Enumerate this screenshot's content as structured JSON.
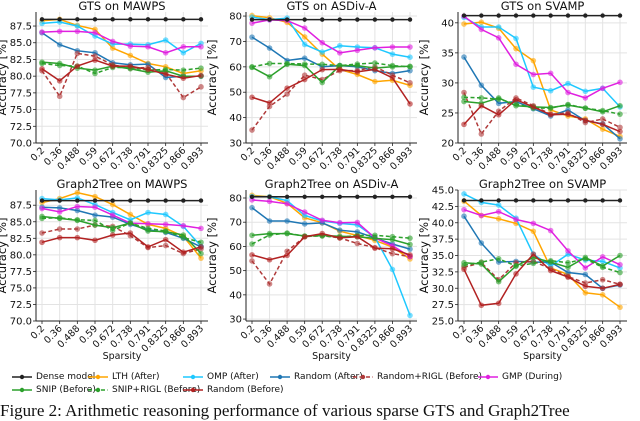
{
  "legend": [
    {
      "name": "Dense model",
      "color": "#222222",
      "dashed": false
    },
    {
      "name": "LTH (After)",
      "color": "#ffa500",
      "dashed": false
    },
    {
      "name": "OMP (After)",
      "color": "#1ec8ff",
      "dashed": false
    },
    {
      "name": "Random (After)",
      "color": "#1f77b4",
      "dashed": false
    },
    {
      "name": "Random+RIGL (Before)",
      "color": "#b03a3a",
      "dashed": true
    },
    {
      "name": "GMP (During)",
      "color": "#e020e0",
      "dashed": false
    },
    {
      "name": "SNIP (Before)",
      "color": "#2ca02c",
      "dashed": false
    },
    {
      "name": "SNIP+RIGL (Before)",
      "color": "#2ca02c",
      "dashed": true
    },
    {
      "name": "Random (Before)",
      "color": "#b22222",
      "dashed": false
    }
  ],
  "caption": "Figure 2: Arithmetic reasoning performance of various sparse GTS and Graph2Tree",
  "chart_data": [
    {
      "type": "line",
      "title": "GTS on MAWPS",
      "xlabel": "",
      "ylabel": "Accuracy [%]",
      "ylim": [
        70,
        89.6
      ],
      "yticks": [
        "70.0",
        "72.5",
        "75.0",
        "77.5",
        "80.0",
        "82.5",
        "85.0",
        "87.5"
      ],
      "categories": [
        "0.2",
        "0.36",
        "0.488",
        "0.59",
        "0.672",
        "0.738",
        "0.791",
        "0.8325",
        "0.866",
        "0.893"
      ],
      "series": [
        {
          "name": "Dense model",
          "values": [
            88.5,
            88.5,
            88.5,
            88.5,
            88.5,
            88.5,
            88.5,
            88.5,
            88.5,
            88.5
          ]
        },
        {
          "name": "LTH (After)",
          "values": [
            88.3,
            88.5,
            87.6,
            87.0,
            84.2,
            83.1,
            81.9,
            81.4,
            80.4,
            80.8
          ]
        },
        {
          "name": "OMP (After)",
          "values": [
            87.9,
            88.1,
            87.5,
            86.0,
            84.8,
            84.8,
            84.7,
            85.4,
            83.5,
            84.9
          ]
        },
        {
          "name": "Random (After)",
          "values": [
            86.5,
            84.7,
            83.8,
            83.5,
            82.0,
            81.7,
            81.8,
            79.8,
            80.0,
            80.0
          ]
        },
        {
          "name": "Random+RIGL (Before)",
          "values": [
            80.8,
            77.0,
            83.4,
            83.0,
            81.7,
            81.2,
            81.3,
            80.5,
            76.8,
            78.4
          ]
        },
        {
          "name": "GMP (During)",
          "values": [
            86.6,
            86.7,
            86.7,
            86.5,
            85.2,
            84.5,
            84.4,
            83.5,
            84.4,
            84.4
          ]
        },
        {
          "name": "SNIP (Before)",
          "values": [
            82.1,
            81.9,
            81.2,
            80.9,
            81.5,
            81.1,
            80.6,
            80.8,
            80.0,
            80.0
          ]
        },
        {
          "name": "SNIP+RIGL (Before)",
          "values": [
            81.9,
            81.6,
            81.5,
            80.4,
            81.3,
            81.3,
            80.9,
            81.0,
            80.9,
            81.2
          ]
        },
        {
          "name": "Random (Before)",
          "values": [
            81.1,
            79.3,
            81.5,
            82.4,
            81.5,
            81.5,
            81.0,
            80.3,
            79.7,
            80.1
          ]
        }
      ]
    },
    {
      "type": "line",
      "title": "GTS on ASDiv-A",
      "xlabel": "",
      "ylabel": "Accuracy [%]",
      "ylim": [
        30,
        81.6
      ],
      "yticks": [
        "30",
        "40",
        "50",
        "60",
        "70",
        "80"
      ],
      "categories": [
        "0.2",
        "0.36",
        "0.488",
        "0.59",
        "0.672",
        "0.738",
        "0.791",
        "0.8325",
        "0.866",
        "0.893"
      ],
      "series": [
        {
          "name": "Dense model",
          "values": [
            78.6,
            78.6,
            78.6,
            78.6,
            78.6,
            78.6,
            78.6,
            78.6,
            78.6,
            78.6
          ]
        },
        {
          "name": "LTH (After)",
          "values": [
            80.2,
            79.3,
            77.5,
            71.8,
            65.0,
            59.0,
            57.0,
            54.2,
            54.7,
            52.7
          ]
        },
        {
          "name": "OMP (After)",
          "values": [
            79.6,
            78.6,
            79.2,
            68.8,
            65.8,
            68.3,
            67.8,
            67.5,
            65.0,
            63.8
          ]
        },
        {
          "name": "Random (After)",
          "values": [
            71.7,
            67.4,
            62.5,
            63.4,
            60.0,
            60.5,
            60.0,
            58.5,
            57.4,
            58.5
          ]
        },
        {
          "name": "Random+RIGL (Before)",
          "values": [
            35.1,
            44.4,
            49.3,
            56.7,
            55.0,
            58.5,
            58.5,
            60.0,
            56.7,
            53.7
          ]
        },
        {
          "name": "GMP (During)",
          "values": [
            77.2,
            78.5,
            78.2,
            75.3,
            69.5,
            65.5,
            66.5,
            67.5,
            67.8,
            67.8
          ]
        },
        {
          "name": "SNIP (Before)",
          "values": [
            59.8,
            56.1,
            61.0,
            60.5,
            53.8,
            60.5,
            60.5,
            59.5,
            60.0,
            60.2
          ]
        },
        {
          "name": "SNIP+RIGL (Before)",
          "values": [
            60.0,
            61.3,
            61.3,
            61.1,
            61.0,
            60.5,
            61.1,
            61.5,
            60.5,
            60.0
          ]
        },
        {
          "name": "Random (Before)",
          "values": [
            48.0,
            45.8,
            51.6,
            55.0,
            58.9,
            59.0,
            58.0,
            59.0,
            55.7,
            45.4
          ]
        }
      ]
    },
    {
      "type": "line",
      "title": "GTS on SVAMP",
      "xlabel": "",
      "ylabel": "Accuracy [%]",
      "ylim": [
        20,
        41.8
      ],
      "yticks": [
        "20",
        "25",
        "30",
        "35",
        "40"
      ],
      "categories": [
        "0.2",
        "0.36",
        "0.488",
        "0.59",
        "0.672",
        "0.738",
        "0.791",
        "0.8325",
        "0.866",
        "0.893"
      ],
      "series": [
        {
          "name": "Dense model",
          "values": [
            41.2,
            41.2,
            41.2,
            41.2,
            41.2,
            41.2,
            41.2,
            41.2,
            41.2,
            41.2
          ]
        },
        {
          "name": "LTH (After)",
          "values": [
            39.8,
            40.1,
            39.1,
            35.7,
            33.7,
            25.5,
            24.5,
            24.0,
            22.3,
            21.1
          ]
        },
        {
          "name": "OMP (After)",
          "values": [
            40.9,
            39.3,
            39.3,
            37.4,
            29.3,
            28.7,
            29.9,
            28.6,
            29.1,
            26.0
          ]
        },
        {
          "name": "Random (After)",
          "values": [
            34.3,
            29.6,
            26.6,
            26.9,
            25.7,
            24.5,
            25.5,
            23.7,
            23.2,
            20.7
          ]
        },
        {
          "name": "Random+RIGL (Before)",
          "values": [
            28.4,
            21.5,
            25.3,
            27.5,
            26.2,
            24.8,
            25.0,
            23.4,
            24.0,
            22.6
          ]
        },
        {
          "name": "GMP (During)",
          "values": [
            41.1,
            38.9,
            37.5,
            33.1,
            31.4,
            31.6,
            28.4,
            27.5,
            29.1,
            30.1
          ]
        },
        {
          "name": "SNIP (Before)",
          "values": [
            26.9,
            26.6,
            27.5,
            26.2,
            26.0,
            25.9,
            26.3,
            25.8,
            25.2,
            26.2
          ]
        },
        {
          "name": "SNIP+RIGL (Before)",
          "values": [
            27.6,
            27.5,
            27.3,
            26.5,
            25.8,
            25.8,
            26.4,
            25.8,
            25.4,
            24.8
          ]
        },
        {
          "name": "Random (Before)",
          "values": [
            23.1,
            26.2,
            24.7,
            27.2,
            26.0,
            24.7,
            24.8,
            23.8,
            23.1,
            21.9
          ]
        }
      ]
    },
    {
      "type": "line",
      "title": "Graph2Tree on MAWPS",
      "xlabel": "Sparsity",
      "ylabel": "Accuracy [%]",
      "ylim": [
        70,
        89.8
      ],
      "yticks": [
        "70.0",
        "72.5",
        "75.0",
        "77.5",
        "80.0",
        "82.5",
        "85.0",
        "87.5"
      ],
      "categories": [
        "0.2",
        "0.36",
        "0.488",
        "0.59",
        "0.672",
        "0.738",
        "0.791",
        "0.8325",
        "0.866",
        "0.893"
      ],
      "series": [
        {
          "name": "Dense model",
          "values": [
            88.2,
            88.2,
            88.2,
            88.2,
            88.2,
            88.2,
            88.2,
            88.2,
            88.2,
            88.2
          ]
        },
        {
          "name": "LTH (After)",
          "values": [
            87.9,
            88.5,
            89.4,
            88.8,
            87.6,
            86.1,
            84.6,
            84.0,
            82.8,
            79.5
          ]
        },
        {
          "name": "OMP (After)",
          "values": [
            88.5,
            88.3,
            88.6,
            87.6,
            86.4,
            85.3,
            86.4,
            86.1,
            84.3,
            81.3
          ]
        },
        {
          "name": "Random (After)",
          "values": [
            87.2,
            87.1,
            86.7,
            86.0,
            85.7,
            84.6,
            83.8,
            83.4,
            82.5,
            81.2
          ]
        },
        {
          "name": "Random+RIGL (Before)",
          "values": [
            83.3,
            83.9,
            83.9,
            84.5,
            84.3,
            82.9,
            81.1,
            81.4,
            80.2,
            80.9
          ]
        },
        {
          "name": "GMP (During)",
          "values": [
            87.0,
            86.5,
            87.3,
            87.2,
            86.0,
            84.8,
            84.7,
            84.6,
            84.4,
            84.0
          ]
        },
        {
          "name": "SNIP (Before)",
          "values": [
            85.8,
            85.5,
            85.2,
            84.5,
            84.1,
            84.8,
            83.6,
            83.5,
            83.0,
            80.2
          ]
        },
        {
          "name": "SNIP+RIGL (Before)",
          "values": [
            85.5,
            85.6,
            85.3,
            85.2,
            83.7,
            84.8,
            84.0,
            83.6,
            82.6,
            81.9
          ]
        },
        {
          "name": "Random (Before)",
          "values": [
            81.9,
            82.6,
            82.6,
            82.2,
            83.0,
            83.3,
            81.2,
            82.3,
            80.4,
            81.2
          ]
        }
      ]
    },
    {
      "type": "line",
      "title": "Graph2Tree on ASDiv-A",
      "xlabel": "Sparsity",
      "ylabel": "Accuracy [%]",
      "ylim": [
        29.2,
        83.3
      ],
      "yticks": [
        "30",
        "40",
        "50",
        "60",
        "70",
        "80"
      ],
      "categories": [
        "0.2",
        "0.36",
        "0.488",
        "0.59",
        "0.672",
        "0.738",
        "0.791",
        "0.8325",
        "0.866",
        "0.893"
      ],
      "series": [
        {
          "name": "Dense model",
          "values": [
            80.5,
            80.5,
            80.5,
            80.5,
            80.5,
            80.5,
            80.5,
            80.5,
            80.5,
            80.5
          ]
        },
        {
          "name": "LTH (After)",
          "values": [
            81.1,
            80.5,
            77.8,
            71.8,
            69.8,
            66.3,
            64.5,
            62.5,
            59.7,
            54.8
          ]
        },
        {
          "name": "OMP (After)",
          "values": [
            80.6,
            80.5,
            78.9,
            72.8,
            70.5,
            69.5,
            68.9,
            63.8,
            50.5,
            31.5
          ]
        },
        {
          "name": "Random (After)",
          "values": [
            76.0,
            70.5,
            70.5,
            69.3,
            69.7,
            66.7,
            66.0,
            63.5,
            61.0,
            58.9
          ]
        },
        {
          "name": "Random+RIGL (Before)",
          "values": [
            54.0,
            44.5,
            58.0,
            64.0,
            64.5,
            63.5,
            61.2,
            59.5,
            57.0,
            55.8
          ]
        },
        {
          "name": "GMP (During)",
          "values": [
            79.2,
            78.6,
            77.6,
            74.2,
            70.8,
            69.8,
            69.9,
            63.5,
            60.3,
            55.8
          ]
        },
        {
          "name": "SNIP (Before)",
          "values": [
            64.6,
            65.3,
            65.3,
            64.3,
            64.5,
            64.2,
            64.0,
            63.3,
            62.8,
            60.8
          ]
        },
        {
          "name": "SNIP+RIGL (Before)",
          "values": [
            61.0,
            64.7,
            65.5,
            64.2,
            64.3,
            63.8,
            64.5,
            64.6,
            64.0,
            63.4
          ]
        },
        {
          "name": "Random (Before)",
          "values": [
            56.5,
            54.5,
            56.3,
            64.0,
            65.3,
            63.5,
            64.0,
            59.3,
            59.0,
            56.5
          ]
        }
      ]
    },
    {
      "type": "line",
      "title": "Graph2Tree on SVAMP",
      "xlabel": "Sparsity",
      "ylabel": "Accuracy [%]",
      "ylim": [
        25,
        45
      ],
      "yticks": [
        "25.0",
        "27.5",
        "30.0",
        "32.5",
        "35.0",
        "37.5",
        "40.0",
        "42.5",
        "45.0"
      ],
      "categories": [
        "0.2",
        "0.36",
        "0.488",
        "0.59",
        "0.672",
        "0.738",
        "0.791",
        "0.8325",
        "0.866",
        "0.893"
      ],
      "series": [
        {
          "name": "Dense model",
          "values": [
            43.4,
            43.4,
            43.4,
            43.4,
            43.4,
            43.4,
            43.4,
            43.4,
            43.4,
            43.4
          ]
        },
        {
          "name": "LTH (After)",
          "values": [
            43.3,
            41.1,
            40.6,
            39.9,
            38.7,
            33.1,
            32.1,
            29.3,
            29.0,
            27.1
          ]
        },
        {
          "name": "OMP (After)",
          "values": [
            44.4,
            43.1,
            42.7,
            40.7,
            35.2,
            33.4,
            35.2,
            34.3,
            34.1,
            33.1
          ]
        },
        {
          "name": "Random (After)",
          "values": [
            41.0,
            36.9,
            34.0,
            34.1,
            34.0,
            34.0,
            32.4,
            32.1,
            30.0,
            30.5
          ]
        },
        {
          "name": "Random+RIGL (Before)",
          "values": [
            33.2,
            33.9,
            31.3,
            33.9,
            34.1,
            33.0,
            31.8,
            30.8,
            31.3,
            30.6
          ]
        },
        {
          "name": "GMP (During)",
          "values": [
            42.0,
            41.1,
            41.7,
            40.5,
            39.9,
            38.8,
            35.7,
            33.1,
            34.8,
            33.6
          ]
        },
        {
          "name": "SNIP (Before)",
          "values": [
            33.9,
            33.7,
            31.0,
            33.4,
            34.7,
            34.0,
            33.2,
            34.7,
            33.4,
            35.0
          ]
        },
        {
          "name": "SNIP+RIGL (Before)",
          "values": [
            33.5,
            34.0,
            34.5,
            33.4,
            33.8,
            34.2,
            33.9,
            34.5,
            33.2,
            32.4
          ]
        },
        {
          "name": "Random (Before)",
          "values": [
            32.9,
            27.4,
            27.7,
            32.2,
            35.2,
            32.7,
            31.7,
            30.3,
            30.0,
            30.6
          ]
        }
      ]
    }
  ]
}
